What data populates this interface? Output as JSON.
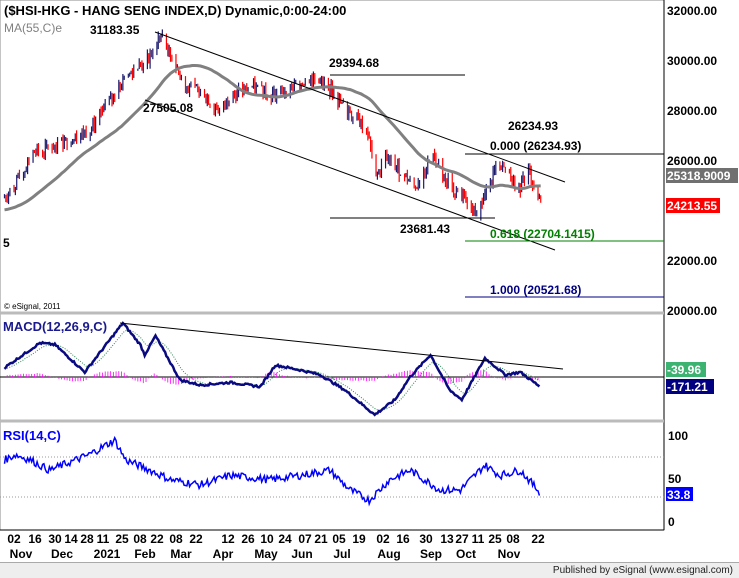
{
  "header": {
    "title": "($HSI-HKG - HANG SENG INDEX,D) Dynamic,0:00-24:00",
    "ma_label": "MA(55,C)e",
    "left_marker": "5",
    "copyright": "© eSignal, 2011"
  },
  "footer": {
    "published": "Published by eSignal (www.esignal.com)"
  },
  "colors": {
    "up": "#1a1a6e",
    "down": "#ff0000",
    "ma": "#808080",
    "macd": "#0a0a80",
    "signal": "#2e8b57",
    "hist": "#ff00ff",
    "rsi": "#0000ff",
    "fib618": "#008000",
    "fib1": "#000080"
  },
  "chart_data": [
    {
      "type": "ohlc",
      "title": "($HSI-HKG - HANG SENG INDEX,D)",
      "x_unit": "days since 2020-11-02",
      "ylim": [
        20000,
        32000
      ],
      "y_ticks": [
        "32000.00",
        "30000.00",
        "28000.00",
        "26000.00",
        "22000.00",
        "20000.00"
      ],
      "last_price": "24213.55",
      "ma_value": "25318.9009",
      "closes": [
        [
          -7,
          24500
        ],
        [
          7,
          25500
        ],
        [
          14,
          26300
        ],
        [
          28,
          26500
        ],
        [
          42,
          26800
        ],
        [
          56,
          27200
        ],
        [
          70,
          28300
        ],
        [
          84,
          29400
        ],
        [
          98,
          30000
        ],
        [
          108,
          31000
        ],
        [
          112,
          30500
        ],
        [
          126,
          29000
        ],
        [
          140,
          28700
        ],
        [
          150,
          27800
        ],
        [
          158,
          28500
        ],
        [
          175,
          28900
        ],
        [
          190,
          28600
        ],
        [
          205,
          28900
        ],
        [
          217,
          29300
        ],
        [
          231,
          28900
        ],
        [
          245,
          27900
        ],
        [
          259,
          27300
        ],
        [
          266,
          25300
        ],
        [
          273,
          26100
        ],
        [
          287,
          25400
        ],
        [
          294,
          24900
        ],
        [
          301,
          25500
        ],
        [
          308,
          26300
        ],
        [
          322,
          24700
        ],
        [
          329,
          24500
        ],
        [
          336,
          24000
        ],
        [
          340,
          23900
        ],
        [
          350,
          25000
        ],
        [
          355,
          26100
        ],
        [
          362,
          25600
        ],
        [
          371,
          24800
        ],
        [
          378,
          25600
        ],
        [
          387,
          24213
        ]
      ],
      "annotations": {
        "high1": "31183.35",
        "high2": "29394.68",
        "low1": "27505.08",
        "high3": "26234.93",
        "low2": "23681.43",
        "fib0": "0.000 (26234.93)",
        "fib618": "0.618 (22704.1415)",
        "fib1": "1.000 (20521.68)"
      }
    },
    {
      "type": "line",
      "title": "MACD(12,26,9,C)",
      "hist_value": "-39.96",
      "macd_value": "-171.21",
      "macd": [
        [
          -7,
          170
        ],
        [
          19,
          630
        ],
        [
          30,
          600
        ],
        [
          52,
          90
        ],
        [
          80,
          1000
        ],
        [
          93,
          590
        ],
        [
          96,
          410
        ],
        [
          104,
          760
        ],
        [
          122,
          -55
        ],
        [
          137,
          -150
        ],
        [
          159,
          -100
        ],
        [
          181,
          -180
        ],
        [
          192,
          220
        ],
        [
          210,
          130
        ],
        [
          225,
          40
        ],
        [
          243,
          -240
        ],
        [
          265,
          -700
        ],
        [
          280,
          -420
        ],
        [
          291,
          0
        ],
        [
          306,
          410
        ],
        [
          320,
          -240
        ],
        [
          329,
          -420
        ],
        [
          346,
          350
        ],
        [
          361,
          40
        ],
        [
          372,
          90
        ],
        [
          386,
          -171
        ]
      ]
    },
    {
      "type": "line",
      "title": "RSI(14,C)",
      "y_ticks": [
        "100",
        "50",
        "0"
      ],
      "last_value": "33.8",
      "rsi": [
        [
          -7,
          71
        ],
        [
          1,
          77
        ],
        [
          12,
          71
        ],
        [
          26,
          59
        ],
        [
          55,
          77
        ],
        [
          74,
          94
        ],
        [
          82,
          71
        ],
        [
          100,
          59
        ],
        [
          115,
          48
        ],
        [
          137,
          42
        ],
        [
          159,
          53
        ],
        [
          188,
          48
        ],
        [
          210,
          53
        ],
        [
          232,
          59
        ],
        [
          247,
          36
        ],
        [
          261,
          24
        ],
        [
          276,
          48
        ],
        [
          291,
          59
        ],
        [
          313,
          36
        ],
        [
          328,
          36
        ],
        [
          346,
          65
        ],
        [
          357,
          53
        ],
        [
          372,
          59
        ],
        [
          386,
          34
        ]
      ]
    }
  ],
  "x_axis": {
    "days": [
      "02",
      "16",
      "30",
      "14",
      "28",
      "11",
      "25",
      "08",
      "22",
      "08",
      "22",
      "12",
      "26",
      "10",
      "24",
      "07",
      "21",
      "05",
      "19",
      "02",
      "16",
      "30",
      "13",
      "27",
      "11",
      "25",
      "08",
      "22"
    ],
    "months": [
      "Nov",
      "Dec",
      "2021",
      "Feb",
      "Mar",
      "Apr",
      "May",
      "Jun",
      "Jul",
      "Aug",
      "Sep",
      "Oct",
      "Nov"
    ]
  }
}
